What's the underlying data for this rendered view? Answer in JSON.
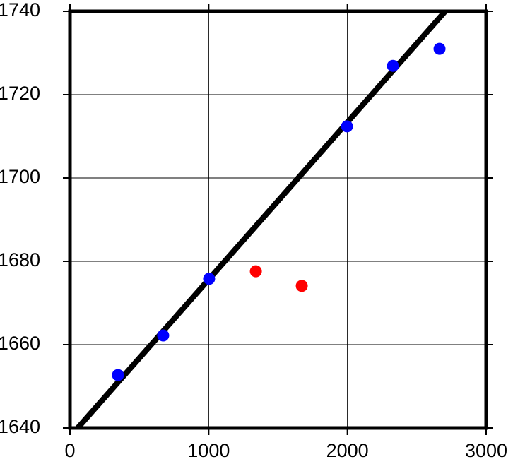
{
  "chart_data": {
    "type": "scatter",
    "xlim": [
      0,
      3000
    ],
    "xticks": [
      0,
      1000,
      2000,
      3000
    ],
    "ylim": [
      1640,
      1740
    ],
    "yticks": [
      1640,
      1660,
      1680,
      1700,
      1720,
      1740
    ],
    "grid": true,
    "series": [
      {
        "mode": "line",
        "color": "#000000",
        "x": [
          56,
          2705
        ],
        "values": [
          1640,
          1740
        ]
      },
      {
        "mode": "markers",
        "color": "#0000ff",
        "x": [
          346,
          672,
          1003,
          1997,
          2328,
          2664
        ],
        "values": [
          1652.7,
          1662.2,
          1675.8,
          1712.4,
          1726.9,
          1731.0
        ]
      },
      {
        "mode": "markers",
        "color": "#ff0000",
        "x": [
          1340,
          1671
        ],
        "values": [
          1677.6,
          1674.1
        ]
      }
    ]
  }
}
